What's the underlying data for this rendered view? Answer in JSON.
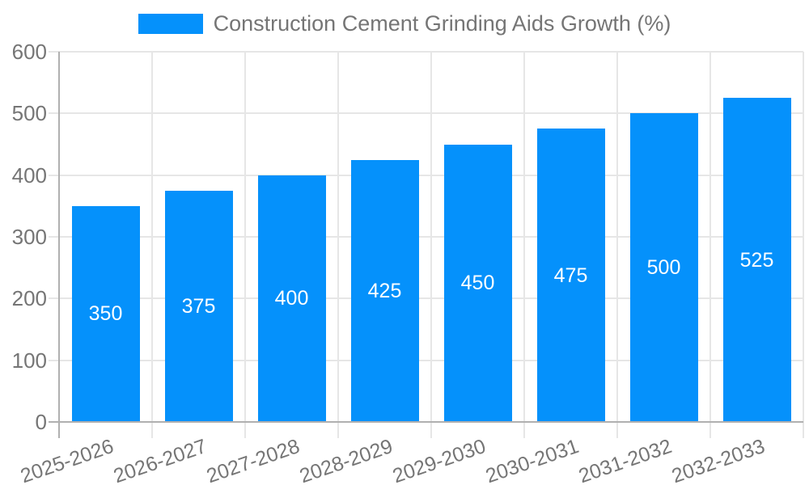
{
  "chart_data": {
    "type": "bar",
    "title": "",
    "legend_label": "Construction Cement Grinding Aids Growth (%)",
    "legend_position": "top",
    "categories": [
      "2025-2026",
      "2026-2027",
      "2027-2028",
      "2028-2029",
      "2029-2030",
      "2030-2031",
      "2031-2032",
      "2032-2033"
    ],
    "values": [
      350,
      375,
      400,
      425,
      450,
      475,
      500,
      525
    ],
    "bar_value_labels": [
      "350",
      "375",
      "400",
      "425",
      "450",
      "475",
      "500",
      "525"
    ],
    "xlabel": "",
    "ylabel": "",
    "ylim": [
      0,
      600
    ],
    "y_ticks": [
      0,
      100,
      200,
      300,
      400,
      500,
      600
    ],
    "grid": true,
    "colors": {
      "bar": "#0591fb",
      "bar_label_text": "#ffffff",
      "axis_text": "#757575",
      "legend_text": "#757575",
      "gridline": "#e6e6e6",
      "axis_line": "#b0b0b0",
      "background": "#ffffff"
    }
  }
}
